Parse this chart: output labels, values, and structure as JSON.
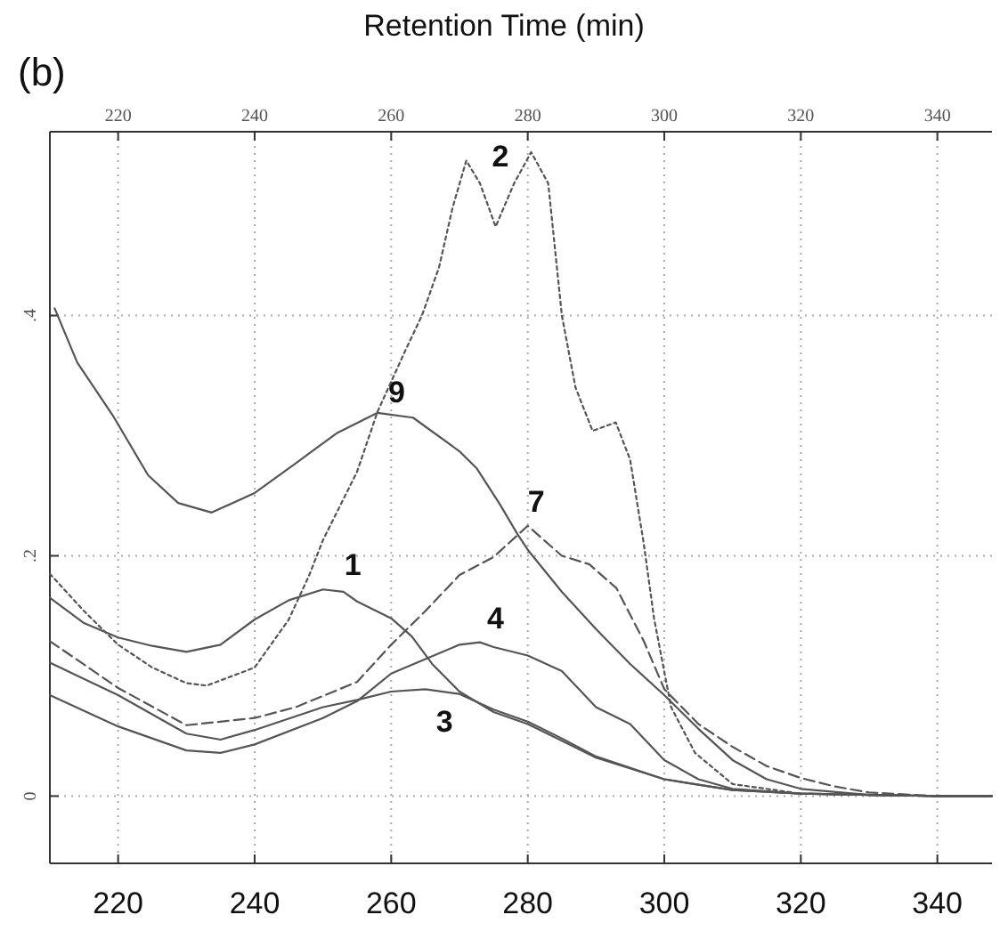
{
  "chart_data": {
    "type": "line",
    "annotations": [
      "Retention Time (min)",
      "(b)"
    ],
    "xlim": [
      210,
      348
    ],
    "xticks": [
      220,
      240,
      260,
      280,
      300,
      320,
      340
    ],
    "x2lim": [
      210,
      348
    ],
    "x2ticks": [
      220,
      240,
      260,
      280,
      300,
      320,
      340
    ],
    "ylim": [
      -0.056,
      0.553
    ],
    "yticks": [
      {
        "value": 0,
        "label": "0"
      },
      {
        "value": 0.2,
        "label": ".2"
      },
      {
        "value": 0.4,
        "label": ".4"
      }
    ],
    "grid": true,
    "series": [
      {
        "name": "9",
        "color": "#555555",
        "line_style": "solid",
        "x": [
          210.7,
          214,
          219.2,
          224.4,
          228.8,
          233.7,
          239.9,
          246,
          252,
          258,
          263.2,
          270,
          272.5,
          275.9,
          278.5,
          280,
          285,
          290,
          295,
          300,
          305,
          310,
          315,
          320,
          330,
          340,
          348
        ],
        "values": [
          0.406,
          0.361,
          0.317,
          0.267,
          0.244,
          0.236,
          0.252,
          0.277,
          0.302,
          0.319,
          0.315,
          0.287,
          0.273,
          0.243,
          0.218,
          0.205,
          0.17,
          0.139,
          0.11,
          0.084,
          0.056,
          0.03,
          0.014,
          0.006,
          0.001,
          0,
          0
        ]
      },
      {
        "name": "2",
        "color": "#555555",
        "line_style": "dotted",
        "x": [
          210,
          215,
          220,
          225,
          230,
          233,
          240,
          245,
          248,
          250,
          255,
          258,
          262,
          264.5,
          267,
          269,
          271,
          273,
          275.3,
          278,
          280.5,
          283,
          285,
          287,
          289.5,
          292.9,
          295,
          297,
          298.5,
          301,
          304.5,
          310,
          320,
          340,
          348
        ],
        "values": [
          0.185,
          0.154,
          0.126,
          0.107,
          0.094,
          0.092,
          0.107,
          0.147,
          0.184,
          0.213,
          0.27,
          0.32,
          0.37,
          0.4,
          0.44,
          0.49,
          0.529,
          0.51,
          0.474,
          0.51,
          0.536,
          0.51,
          0.4,
          0.34,
          0.304,
          0.311,
          0.28,
          0.21,
          0.148,
          0.074,
          0.036,
          0.01,
          0.002,
          0,
          0
        ]
      },
      {
        "name": "1",
        "color": "#555555",
        "line_style": "solid",
        "x": [
          210,
          215,
          220,
          225,
          230,
          235,
          240,
          245,
          250,
          253,
          255,
          260,
          263,
          266,
          270,
          275,
          280,
          285,
          290,
          300,
          310,
          320,
          340,
          348
        ],
        "values": [
          0.165,
          0.144,
          0.132,
          0.125,
          0.12,
          0.126,
          0.147,
          0.163,
          0.172,
          0.17,
          0.162,
          0.148,
          0.133,
          0.11,
          0.087,
          0.07,
          0.06,
          0.046,
          0.032,
          0.014,
          0.005,
          0.002,
          0,
          0
        ]
      },
      {
        "name": "7",
        "color": "#555555",
        "line_style": "dashed",
        "x": [
          210,
          220,
          230,
          240,
          246,
          255,
          260,
          265,
          270,
          275,
          280,
          285,
          289,
          293,
          297,
          300,
          305,
          310,
          315,
          320,
          325,
          330,
          340,
          348
        ],
        "values": [
          0.129,
          0.09,
          0.059,
          0.065,
          0.074,
          0.095,
          0.126,
          0.154,
          0.184,
          0.199,
          0.225,
          0.2,
          0.193,
          0.173,
          0.129,
          0.089,
          0.06,
          0.041,
          0.025,
          0.015,
          0.008,
          0.003,
          0,
          0
        ]
      },
      {
        "name": "4",
        "color": "#555555",
        "line_style": "solid",
        "x": [
          210,
          220,
          230,
          235,
          240,
          250,
          255,
          260,
          265,
          270,
          273,
          275,
          280,
          285,
          290,
          295,
          300,
          305,
          310,
          320,
          340,
          348
        ],
        "values": [
          0.084,
          0.058,
          0.038,
          0.036,
          0.043,
          0.065,
          0.079,
          0.102,
          0.114,
          0.126,
          0.128,
          0.124,
          0.117,
          0.104,
          0.074,
          0.06,
          0.03,
          0.014,
          0.006,
          0.002,
          0,
          0
        ]
      },
      {
        "name": "3",
        "color": "#555555",
        "line_style": "solid",
        "x": [
          210,
          220,
          230,
          235,
          240,
          250,
          255,
          260,
          265,
          270,
          275,
          280,
          285,
          290,
          300,
          310,
          320,
          340,
          348
        ],
        "values": [
          0.111,
          0.084,
          0.052,
          0.047,
          0.055,
          0.074,
          0.08,
          0.087,
          0.089,
          0.085,
          0.072,
          0.062,
          0.048,
          0.033,
          0.014,
          0.005,
          0.002,
          0,
          0
        ]
      }
    ]
  }
}
